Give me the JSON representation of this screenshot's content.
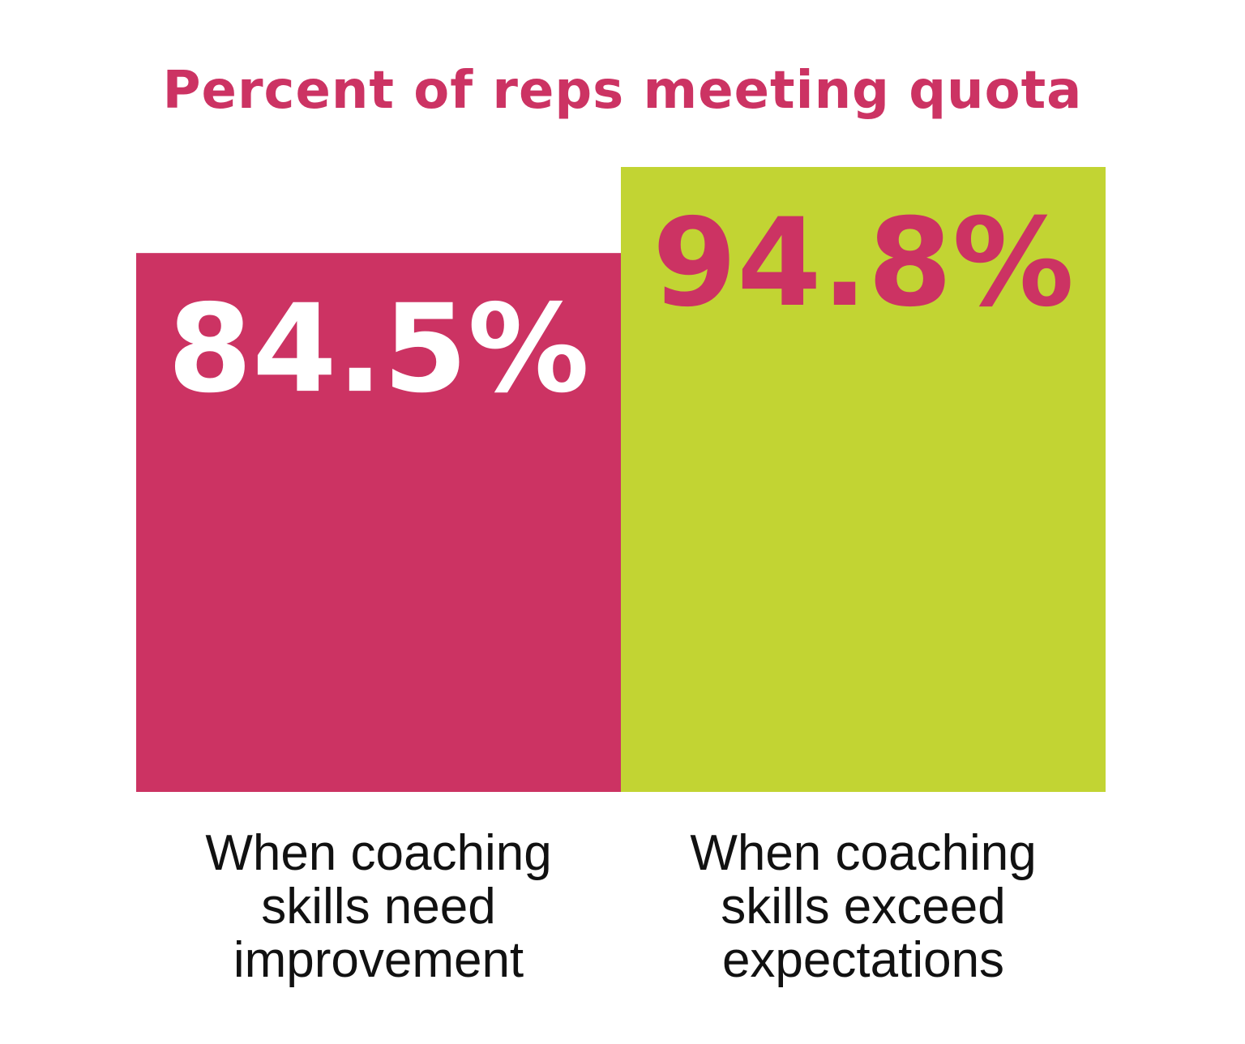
{
  "colors": {
    "pink": "#CC3363",
    "lime": "#C2D433",
    "white": "#FFFFFF",
    "text_dark": "#111111"
  },
  "chart_data": {
    "type": "bar",
    "title": "Percent of reps meeting quota",
    "categories": [
      "When coaching\nskills need\nimprovement",
      "When coaching\nskills exceed\nexpectations"
    ],
    "values": [
      84.5,
      94.8
    ],
    "value_labels": [
      "84.5%",
      "94.8%"
    ],
    "bar_colors": [
      "#CC3363",
      "#C2D433"
    ],
    "value_label_colors": [
      "#FFFFFF",
      "#CC3363"
    ],
    "ylim": [
      0,
      100
    ],
    "xlabel": "",
    "ylabel": "",
    "grid": false,
    "legend": "none"
  }
}
